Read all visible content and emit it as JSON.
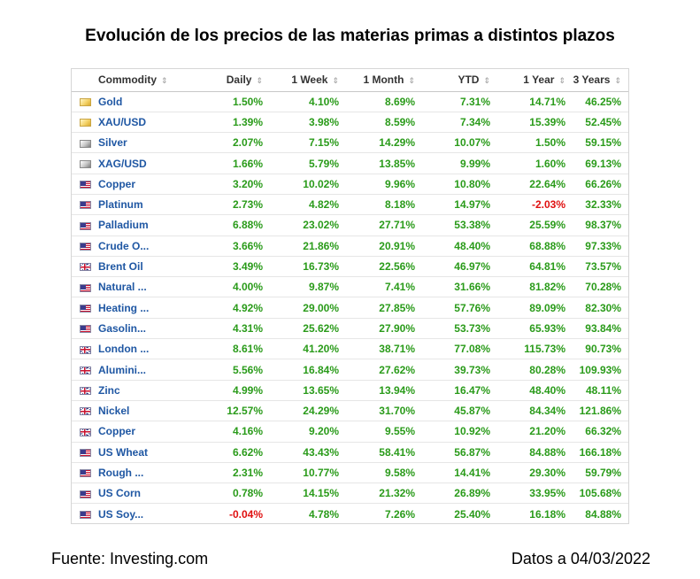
{
  "title": "Evolución de los precios de las materias primas a distintos plazos",
  "table": {
    "sort_glyph": "⇕",
    "columns": [
      "Commodity",
      "Daily",
      "1 Week",
      "1 Month",
      "YTD",
      "1 Year",
      "3 Years"
    ],
    "rows": [
      {
        "flag": "gold-icon",
        "name": "Gold",
        "values": [
          "1.50%",
          "4.10%",
          "8.69%",
          "7.31%",
          "14.71%",
          "46.25%"
        ]
      },
      {
        "flag": "gold-icon",
        "name": "XAU/USD",
        "values": [
          "1.39%",
          "3.98%",
          "8.59%",
          "7.34%",
          "15.39%",
          "52.45%"
        ]
      },
      {
        "flag": "silver-icon",
        "name": "Silver",
        "values": [
          "2.07%",
          "7.15%",
          "14.29%",
          "10.07%",
          "1.50%",
          "59.15%"
        ]
      },
      {
        "flag": "silver-icon",
        "name": "XAG/USD",
        "values": [
          "1.66%",
          "5.79%",
          "13.85%",
          "9.99%",
          "1.60%",
          "69.13%"
        ]
      },
      {
        "flag": "us-flag-icon",
        "name": "Copper",
        "values": [
          "3.20%",
          "10.02%",
          "9.96%",
          "10.80%",
          "22.64%",
          "66.26%"
        ]
      },
      {
        "flag": "us-flag-icon",
        "name": "Platinum",
        "values": [
          "2.73%",
          "4.82%",
          "8.18%",
          "14.97%",
          "-2.03%",
          "32.33%"
        ]
      },
      {
        "flag": "us-flag-icon",
        "name": "Palladium",
        "values": [
          "6.88%",
          "23.02%",
          "27.71%",
          "53.38%",
          "25.59%",
          "98.37%"
        ]
      },
      {
        "flag": "us-flag-icon",
        "name": "Crude O...",
        "values": [
          "3.66%",
          "21.86%",
          "20.91%",
          "48.40%",
          "68.88%",
          "97.33%"
        ]
      },
      {
        "flag": "uk-flag-icon",
        "name": "Brent Oil",
        "values": [
          "3.49%",
          "16.73%",
          "22.56%",
          "46.97%",
          "64.81%",
          "73.57%"
        ]
      },
      {
        "flag": "us-flag-icon",
        "name": "Natural ...",
        "values": [
          "4.00%",
          "9.87%",
          "7.41%",
          "31.66%",
          "81.82%",
          "70.28%"
        ]
      },
      {
        "flag": "us-flag-icon",
        "name": "Heating ...",
        "values": [
          "4.92%",
          "29.00%",
          "27.85%",
          "57.76%",
          "89.09%",
          "82.30%"
        ]
      },
      {
        "flag": "us-flag-icon",
        "name": "Gasolin...",
        "values": [
          "4.31%",
          "25.62%",
          "27.90%",
          "53.73%",
          "65.93%",
          "93.84%"
        ]
      },
      {
        "flag": "uk-flag-icon",
        "name": "London ...",
        "values": [
          "8.61%",
          "41.20%",
          "38.71%",
          "77.08%",
          "115.73%",
          "90.73%"
        ]
      },
      {
        "flag": "uk-flag-icon",
        "name": "Alumini...",
        "values": [
          "5.56%",
          "16.84%",
          "27.62%",
          "39.73%",
          "80.28%",
          "109.93%"
        ]
      },
      {
        "flag": "uk-flag-icon",
        "name": "Zinc",
        "values": [
          "4.99%",
          "13.65%",
          "13.94%",
          "16.47%",
          "48.40%",
          "48.11%"
        ]
      },
      {
        "flag": "uk-flag-icon",
        "name": "Nickel",
        "values": [
          "12.57%",
          "24.29%",
          "31.70%",
          "45.87%",
          "84.34%",
          "121.86%"
        ]
      },
      {
        "flag": "uk-flag-icon",
        "name": "Copper",
        "values": [
          "4.16%",
          "9.20%",
          "9.55%",
          "10.92%",
          "21.20%",
          "66.32%"
        ]
      },
      {
        "flag": "us-flag-icon",
        "name": "US Wheat",
        "values": [
          "6.62%",
          "43.43%",
          "58.41%",
          "56.87%",
          "84.88%",
          "166.18%"
        ]
      },
      {
        "flag": "us-flag-icon",
        "name": "Rough ...",
        "values": [
          "2.31%",
          "10.77%",
          "9.58%",
          "14.41%",
          "29.30%",
          "59.79%"
        ]
      },
      {
        "flag": "us-flag-icon",
        "name": "US Corn",
        "values": [
          "0.78%",
          "14.15%",
          "21.32%",
          "26.89%",
          "33.95%",
          "105.68%"
        ]
      },
      {
        "flag": "us-flag-icon",
        "name": "US Soy...",
        "values": [
          "-0.04%",
          "4.78%",
          "7.26%",
          "25.40%",
          "16.18%",
          "84.88%"
        ]
      }
    ]
  },
  "colors": {
    "positive": "#2a9b1a",
    "negative": "#e01010",
    "link": "#1f57a3"
  },
  "footer": {
    "source": "Fuente: Investing.com",
    "date": "Datos a 04/03/2022"
  }
}
